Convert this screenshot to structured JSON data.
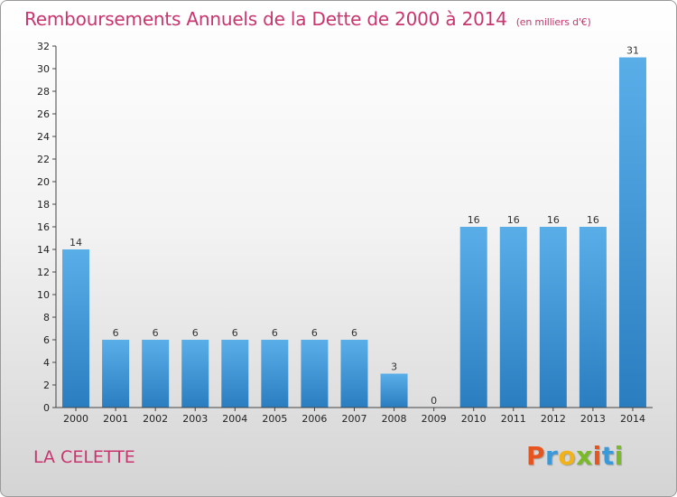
{
  "header": {
    "title": "Remboursements Annuels de la Dette de 2000 à 2014",
    "unit": "(en milliers d'€)"
  },
  "footer": {
    "commune": "LA CELETTE",
    "logo_letters": [
      "P",
      "r",
      "o",
      "x",
      "i",
      "t",
      "i"
    ],
    "logo_colors": [
      "#e8541e",
      "#3a9ad9",
      "#f2b318",
      "#7ab928",
      "#e8541e",
      "#3a9ad9",
      "#7ab928"
    ]
  },
  "colors": {
    "title": "#c8356f",
    "bar_light": "#5aaee8",
    "bar_dark": "#2a7ec0",
    "axis": "#444444"
  },
  "chart_data": {
    "type": "bar",
    "title": "Remboursements Annuels de la Dette de 2000 à 2014",
    "xlabel": "",
    "ylabel": "",
    "categories": [
      "2000",
      "2001",
      "2002",
      "2003",
      "2004",
      "2005",
      "2006",
      "2007",
      "2008",
      "2009",
      "2010",
      "2011",
      "2012",
      "2013",
      "2014"
    ],
    "values": [
      14,
      6,
      6,
      6,
      6,
      6,
      6,
      6,
      3,
      0,
      16,
      16,
      16,
      16,
      31
    ],
    "ylim": [
      0,
      32
    ],
    "yticks": [
      0,
      2,
      4,
      6,
      8,
      10,
      12,
      14,
      16,
      18,
      20,
      22,
      24,
      26,
      28,
      30,
      32
    ],
    "grid": false,
    "legend": "none"
  }
}
